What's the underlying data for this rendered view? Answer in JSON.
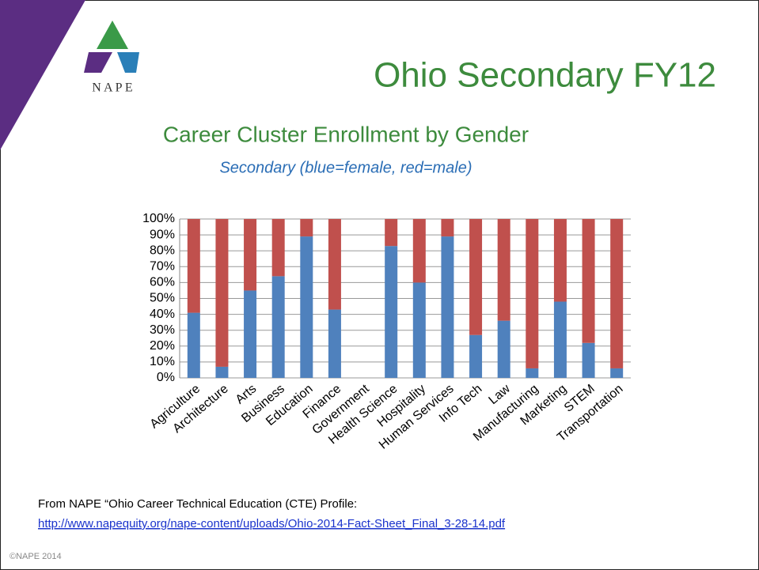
{
  "logo": {
    "text": "N A P E"
  },
  "slide_title": "Ohio Secondary FY12",
  "chart_data": {
    "type": "stacked_bar",
    "title": "Career Cluster Enrollment by Gender",
    "subtitle": "Secondary (blue=female, red=male)",
    "categories": [
      "Agriculture",
      "Architecture",
      "Arts",
      "Business",
      "Education",
      "Finance",
      "Government",
      "Health Science",
      "Hospitality",
      "Human Services",
      "Info Tech",
      "Law",
      "Manufacturing",
      "Marketing",
      "STEM",
      "Transportation"
    ],
    "series": [
      {
        "name": "female",
        "color": "#4f81bd",
        "values": [
          41,
          7,
          55,
          64,
          89,
          43,
          null,
          83,
          60,
          89,
          27,
          36,
          6,
          48,
          22,
          6
        ]
      },
      {
        "name": "male",
        "color": "#c0504d",
        "values": [
          59,
          93,
          45,
          36,
          11,
          57,
          null,
          17,
          40,
          11,
          73,
          64,
          94,
          52,
          78,
          94
        ]
      }
    ],
    "ylim": [
      0,
      100
    ],
    "yticks": [
      {
        "value": 0,
        "label": "0%"
      },
      {
        "value": 10,
        "label": "10%"
      },
      {
        "value": 20,
        "label": "20%"
      },
      {
        "value": 30,
        "label": "30%"
      },
      {
        "value": 40,
        "label": "40%"
      },
      {
        "value": 50,
        "label": "50%"
      },
      {
        "value": 60,
        "label": "60%"
      },
      {
        "value": 70,
        "label": "70%"
      },
      {
        "value": 80,
        "label": "80%"
      },
      {
        "value": 90,
        "label": "90%"
      },
      {
        "value": 100,
        "label": "100%"
      }
    ],
    "grid": true
  },
  "source": {
    "text": "From NAPE “Ohio Career Technical Education (CTE) Profile:",
    "link": "http://www.napequity.org/nape-content/uploads/Ohio-2014-Fact-Sheet_Final_3-28-14.pdf"
  },
  "copyright": "©NAPE 2014"
}
